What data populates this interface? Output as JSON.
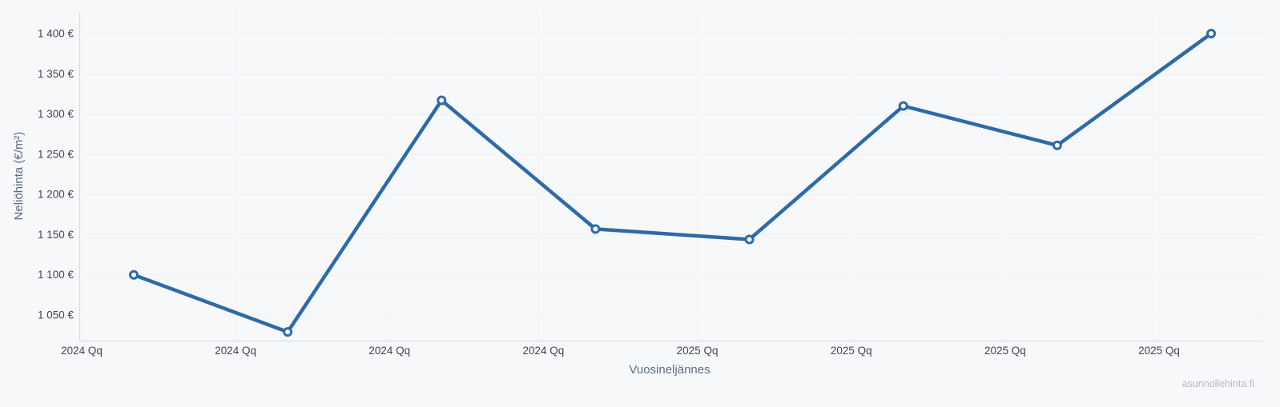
{
  "watermark": "asunnollehinta.fi",
  "chart_data": {
    "type": "line",
    "title": "",
    "xlabel": "Vuosineljännes",
    "ylabel": "Neliöhinta (€/m²)",
    "categories": [
      "2024 Qq",
      "2024 Qq",
      "2024 Qq",
      "2024 Qq",
      "2025 Qq",
      "2025 Qq",
      "2025 Qq",
      "2025 Qq"
    ],
    "values": [
      1100,
      1029,
      1317,
      1157,
      1144,
      1310,
      1261,
      1400
    ],
    "y_ticks": [
      {
        "value": 1050,
        "label": "1 050 €"
      },
      {
        "value": 1100,
        "label": "1 100 €"
      },
      {
        "value": 1150,
        "label": "1 150 €"
      },
      {
        "value": 1200,
        "label": "1 200 €"
      },
      {
        "value": 1250,
        "label": "1 250 €"
      },
      {
        "value": 1300,
        "label": "1 300 €"
      },
      {
        "value": 1350,
        "label": "1 350 €"
      },
      {
        "value": 1400,
        "label": "1 400 €"
      }
    ],
    "ylim": [
      1018,
      1428
    ],
    "grid": true,
    "legend": false,
    "marker": "open-circle",
    "colors": {
      "line": "#2e6ba6",
      "marker_fill": "#ffffff",
      "axis": "#d6d9e0",
      "grid": "#eef0f4",
      "tick_text": "#42464e",
      "axis_title_text": "#5d6b84",
      "watermark_text": "#b6bac6",
      "background": "#f7f8fa"
    }
  }
}
